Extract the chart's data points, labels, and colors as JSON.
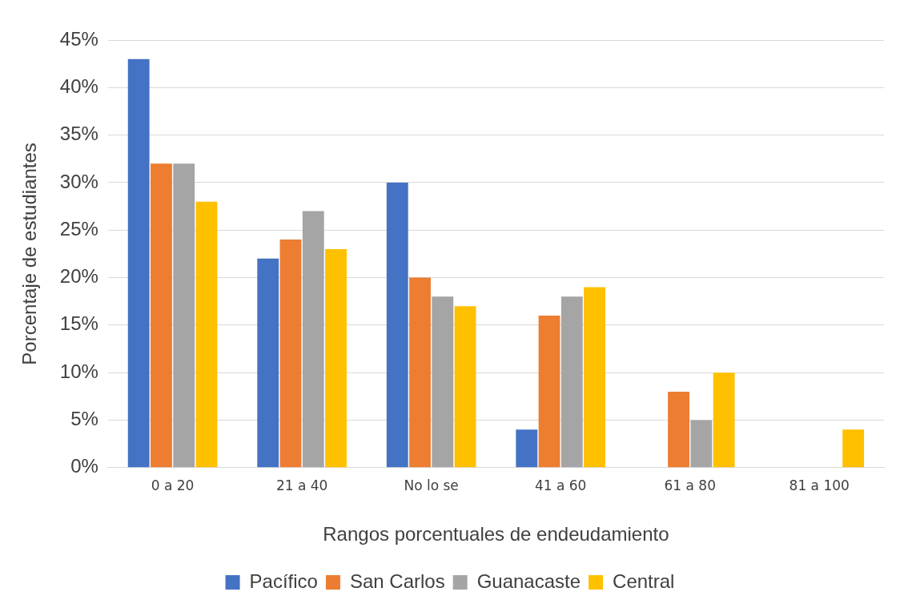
{
  "chart_data": {
    "type": "bar",
    "xlabel": "Rangos porcentuales de endeudamiento",
    "ylabel": "Porcentaje de estudiantes",
    "categories": [
      "0 a 20",
      "21 a 40",
      "No lo se",
      "41 a 60",
      "61 a 80",
      "81 a 100"
    ],
    "series": [
      {
        "name": "Pacífico",
        "color": "#4472c4",
        "values": [
          43,
          22,
          30,
          4,
          0,
          0
        ]
      },
      {
        "name": "San Carlos",
        "color": "#ed7d31",
        "values": [
          32,
          24,
          20,
          16,
          8,
          0
        ]
      },
      {
        "name": "Guanacaste",
        "color": "#a5a5a5",
        "values": [
          32,
          27,
          18,
          18,
          5,
          0
        ]
      },
      {
        "name": "Central",
        "color": "#ffc000",
        "values": [
          28,
          23,
          17,
          19,
          10,
          4
        ]
      }
    ],
    "ylim": [
      0,
      45
    ],
    "yticks": [
      {
        "value": 0,
        "label": "0%"
      },
      {
        "value": 5,
        "label": "5%"
      },
      {
        "value": 10,
        "label": "10%"
      },
      {
        "value": 15,
        "label": "15%"
      },
      {
        "value": 20,
        "label": "20%"
      },
      {
        "value": 25,
        "label": "25%"
      },
      {
        "value": 30,
        "label": "30%"
      },
      {
        "value": 35,
        "label": "35%"
      },
      {
        "value": 40,
        "label": "40%"
      },
      {
        "value": 45,
        "label": "45%"
      }
    ],
    "grid": "y",
    "legend": "bottom"
  }
}
